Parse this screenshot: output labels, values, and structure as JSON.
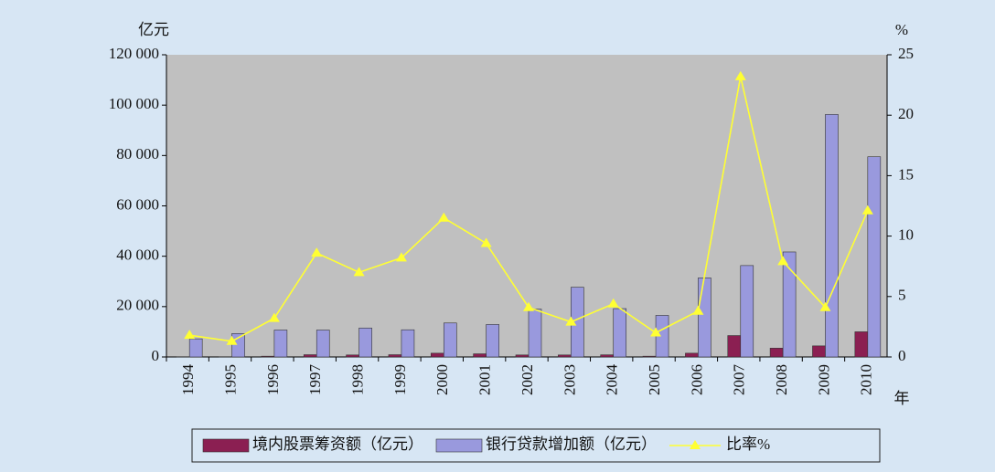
{
  "chart_data": {
    "type": "bar",
    "y_unit": "亿元",
    "y2_unit": "%",
    "x_unit": "年",
    "categories": [
      "1994",
      "1995",
      "1996",
      "1997",
      "1998",
      "1999",
      "2000",
      "2001",
      "2002",
      "2003",
      "2004",
      "2005",
      "2006",
      "2007",
      "2008",
      "2009",
      "2010"
    ],
    "series": [
      {
        "name": "境内股票筹资额（亿元）",
        "color": "#8b1f52",
        "values": [
          100,
          100,
          300,
          900,
          800,
          900,
          1500,
          1250,
          800,
          800,
          850,
          300,
          1500,
          8500,
          3500,
          4400,
          10000
        ]
      },
      {
        "name": "银行贷款增加额（亿元）",
        "color": "#9999dd",
        "values": [
          7200,
          9300,
          10700,
          10700,
          11500,
          10800,
          13500,
          12900,
          19000,
          27700,
          19200,
          16500,
          31400,
          36300,
          41700,
          96300,
          79500
        ]
      },
      {
        "name": "比率%",
        "color": "#ffff33",
        "type": "line",
        "axis": "y2",
        "values": [
          1.8,
          1.3,
          3.2,
          8.6,
          7.0,
          8.2,
          11.5,
          9.4,
          4.1,
          2.9,
          4.4,
          2.0,
          3.8,
          23.2,
          7.9,
          4.1,
          12.1
        ]
      }
    ],
    "ylim": [
      0,
      120000
    ],
    "yticks": [
      0,
      {
        "value": 20000,
        "label": "20 000"
      },
      {
        "value": 40000,
        "label": "40 000"
      },
      {
        "value": 60000,
        "label": "60 000"
      },
      {
        "value": 80000,
        "label": "80 000"
      },
      {
        "value": 100000,
        "label": "100 000"
      },
      {
        "value": 120000,
        "label": "120 000"
      }
    ],
    "y2lim": [
      0,
      25
    ],
    "y2ticks": [
      0,
      5,
      10,
      15,
      20,
      25
    ],
    "plot_color": "#c0c0c0",
    "background": "#d7e6f4"
  }
}
